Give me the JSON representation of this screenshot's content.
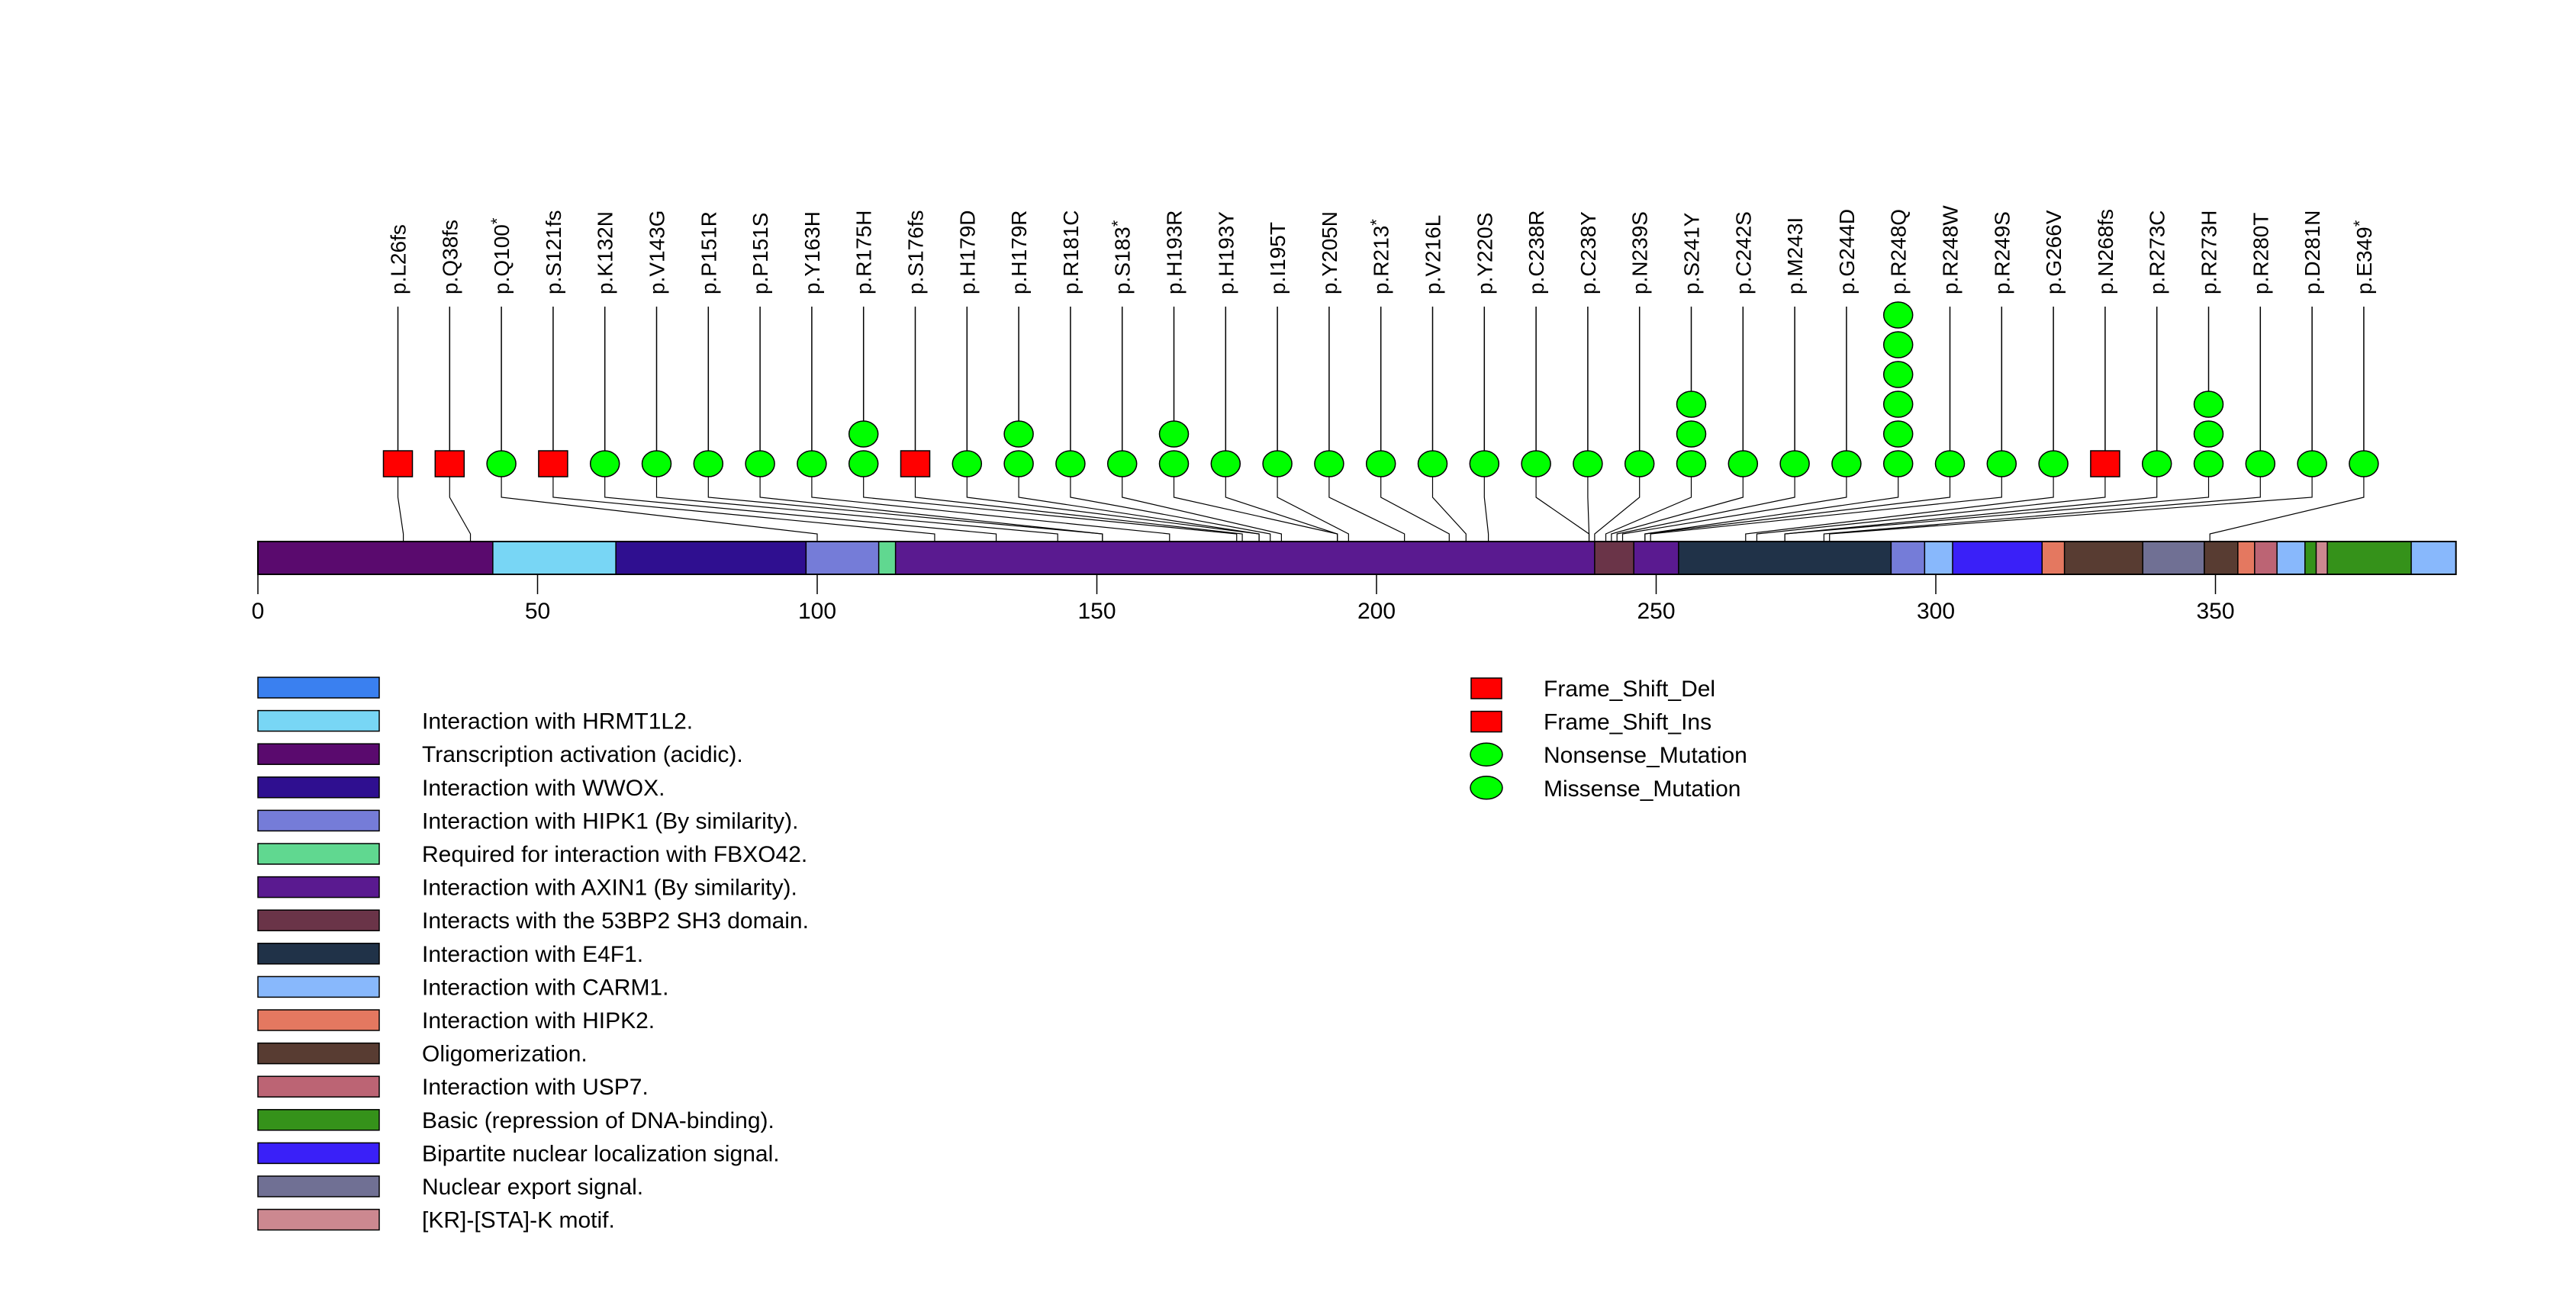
{
  "chart_data": {
    "type": "lollipop",
    "title": "",
    "protein_length": 393,
    "xlim": [
      0,
      393
    ],
    "x_ticks": [
      0,
      50,
      100,
      150,
      200,
      250,
      300,
      350
    ],
    "grid": false,
    "mutations": [
      {
        "label": "p.L26fs",
        "position": 26,
        "count": 1,
        "type": "Frame_Shift_Del"
      },
      {
        "label": "p.Q38fs",
        "position": 38,
        "count": 1,
        "type": "Frame_Shift_Del"
      },
      {
        "label": "p.Q100",
        "label_suffix": "*",
        "position": 100,
        "count": 1,
        "type": "Nonsense_Mutation"
      },
      {
        "label": "p.S121fs",
        "position": 121,
        "count": 1,
        "type": "Frame_Shift_Ins"
      },
      {
        "label": "p.K132N",
        "position": 132,
        "count": 1,
        "type": "Missense_Mutation"
      },
      {
        "label": "p.V143G",
        "position": 143,
        "count": 1,
        "type": "Missense_Mutation"
      },
      {
        "label": "p.P151R",
        "position": 151,
        "count": 1,
        "type": "Missense_Mutation"
      },
      {
        "label": "p.P151S",
        "position": 151,
        "count": 1,
        "type": "Missense_Mutation"
      },
      {
        "label": "p.Y163H",
        "position": 163,
        "count": 1,
        "type": "Missense_Mutation"
      },
      {
        "label": "p.R175H",
        "position": 175,
        "count": 2,
        "type": "Missense_Mutation"
      },
      {
        "label": "p.S176fs",
        "position": 176,
        "count": 1,
        "type": "Frame_Shift_Del"
      },
      {
        "label": "p.H179D",
        "position": 179,
        "count": 1,
        "type": "Missense_Mutation"
      },
      {
        "label": "p.H179R",
        "position": 179,
        "count": 2,
        "type": "Missense_Mutation"
      },
      {
        "label": "p.R181C",
        "position": 181,
        "count": 1,
        "type": "Missense_Mutation"
      },
      {
        "label": "p.S183",
        "label_suffix": "*",
        "position": 183,
        "count": 1,
        "type": "Nonsense_Mutation"
      },
      {
        "label": "p.H193R",
        "position": 193,
        "count": 2,
        "type": "Missense_Mutation"
      },
      {
        "label": "p.H193Y",
        "position": 193,
        "count": 1,
        "type": "Missense_Mutation"
      },
      {
        "label": "p.I195T",
        "position": 195,
        "count": 1,
        "type": "Missense_Mutation"
      },
      {
        "label": "p.Y205N",
        "position": 205,
        "count": 1,
        "type": "Missense_Mutation"
      },
      {
        "label": "p.R213",
        "label_suffix": "*",
        "position": 213,
        "count": 1,
        "type": "Nonsense_Mutation"
      },
      {
        "label": "p.V216L",
        "position": 216,
        "count": 1,
        "type": "Missense_Mutation"
      },
      {
        "label": "p.Y220S",
        "position": 220,
        "count": 1,
        "type": "Missense_Mutation"
      },
      {
        "label": "p.C238R",
        "position": 238,
        "count": 1,
        "type": "Missense_Mutation"
      },
      {
        "label": "p.C238Y",
        "position": 238,
        "count": 1,
        "type": "Missense_Mutation"
      },
      {
        "label": "p.N239S",
        "position": 239,
        "count": 1,
        "type": "Missense_Mutation"
      },
      {
        "label": "p.S241Y",
        "position": 241,
        "count": 3,
        "type": "Missense_Mutation"
      },
      {
        "label": "p.C242S",
        "position": 242,
        "count": 1,
        "type": "Missense_Mutation"
      },
      {
        "label": "p.M243I",
        "position": 243,
        "count": 1,
        "type": "Missense_Mutation"
      },
      {
        "label": "p.G244D",
        "position": 244,
        "count": 1,
        "type": "Missense_Mutation"
      },
      {
        "label": "p.R248Q",
        "position": 248,
        "count": 6,
        "type": "Missense_Mutation"
      },
      {
        "label": "p.R248W",
        "position": 248,
        "count": 1,
        "type": "Missense_Mutation"
      },
      {
        "label": "p.R249S",
        "position": 249,
        "count": 1,
        "type": "Missense_Mutation"
      },
      {
        "label": "p.G266V",
        "position": 266,
        "count": 1,
        "type": "Missense_Mutation"
      },
      {
        "label": "p.N268fs",
        "position": 268,
        "count": 1,
        "type": "Frame_Shift_Del"
      },
      {
        "label": "p.R273C",
        "position": 273,
        "count": 1,
        "type": "Missense_Mutation"
      },
      {
        "label": "p.R273H",
        "position": 273,
        "count": 3,
        "type": "Missense_Mutation"
      },
      {
        "label": "p.R280T",
        "position": 280,
        "count": 1,
        "type": "Missense_Mutation"
      },
      {
        "label": "p.D281N",
        "position": 281,
        "count": 1,
        "type": "Missense_Mutation"
      },
      {
        "label": "p.E349",
        "label_suffix": "*",
        "position": 349,
        "count": 1,
        "type": "Nonsense_Mutation"
      }
    ],
    "domains": [
      {
        "name": "Transcription activation (acidic).",
        "start": 1,
        "end": 43,
        "color": "#5a0a6e"
      },
      {
        "name": "Interaction with HRMT1L2.",
        "start": 43,
        "end": 65,
        "color": "#78d6f5"
      },
      {
        "name": "Interaction with WWOX.",
        "start": 65,
        "end": 99,
        "color": "#2f0f90"
      },
      {
        "name": "Interaction with HIPK1 (By similarity).",
        "start": 99,
        "end": 112,
        "color": "#757cd8"
      },
      {
        "name": "Required for interaction with FBXO42.",
        "start": 112,
        "end": 115,
        "color": "#60d890"
      },
      {
        "name": "Interaction with AXIN1 (By similarity).",
        "start": 115,
        "end": 240,
        "color": "#5a1a90"
      },
      {
        "name": "Interacts with the 53BP2 SH3 domain.",
        "start": 240,
        "end": 247,
        "color": "#6a3448"
      },
      {
        "name": "Interaction with AXIN1 (By similarity).",
        "start": 247,
        "end": 255,
        "color": "#5a1a90"
      },
      {
        "name": "Interaction with E4F1.",
        "start": 255,
        "end": 293,
        "color": "#203248"
      },
      {
        "name": "Interaction with HIPK1 (By similarity).",
        "start": 293,
        "end": 299,
        "color": "#757cd8"
      },
      {
        "name": "Interaction with CARM1.",
        "start": 299,
        "end": 304,
        "color": "#88b8fc"
      },
      {
        "name": "Bipartite nuclear localization signal.",
        "start": 304,
        "end": 320,
        "color": "#3a20f8"
      },
      {
        "name": "Interaction with HIPK2.",
        "start": 320,
        "end": 324,
        "color": "#e47860"
      },
      {
        "name": "Oligomerization.",
        "start": 324,
        "end": 338,
        "color": "#583c32"
      },
      {
        "name": "Nuclear export signal.",
        "start": 338,
        "end": 348,
        "color": "#707094"
      },
      {
        "name": "Oligomerization.",
        "start": 349,
        "end": 355,
        "color": "#583c32"
      },
      {
        "name": "Interaction with HIPK2.",
        "start": 355,
        "end": 358,
        "color": "#e47860"
      },
      {
        "name": "Interaction with USP7.",
        "start": 358,
        "end": 362,
        "color": "#bc6474"
      },
      {
        "name": "Interaction with CARM1.",
        "start": 362,
        "end": 367,
        "color": "#88b8fc"
      },
      {
        "name": "Basic (repression of DNA-binding).",
        "start": 367,
        "end": 369,
        "color": "#35921a"
      },
      {
        "name": "[KR]-[STA]-K motif.",
        "start": 369,
        "end": 371,
        "color": "#cc8890"
      },
      {
        "name": "Basic (repression of DNA-binding).",
        "start": 371,
        "end": 386,
        "color": "#35921a"
      },
      {
        "name": "Interaction with CARM1.",
        "start": 386,
        "end": 393,
        "color": "#88b8fc"
      }
    ],
    "domain_legend": [
      {
        "name": "",
        "color": "#3a80f0"
      },
      {
        "name": "Interaction with HRMT1L2.",
        "color": "#78d6f5"
      },
      {
        "name": "Transcription activation (acidic).",
        "color": "#5a0a6e"
      },
      {
        "name": "Interaction with WWOX.",
        "color": "#2f0f90"
      },
      {
        "name": "Interaction with HIPK1 (By similarity).",
        "color": "#757cd8"
      },
      {
        "name": "Required for interaction with FBXO42.",
        "color": "#60d890"
      },
      {
        "name": "Interaction with AXIN1 (By similarity).",
        "color": "#5a1a90"
      },
      {
        "name": "Interacts with the 53BP2 SH3 domain.",
        "color": "#6a3448"
      },
      {
        "name": "Interaction with E4F1.",
        "color": "#203248"
      },
      {
        "name": "Interaction with CARM1.",
        "color": "#88b8fc"
      },
      {
        "name": "Interaction with HIPK2.",
        "color": "#e47860"
      },
      {
        "name": "Oligomerization.",
        "color": "#583c32"
      },
      {
        "name": "Interaction with USP7.",
        "color": "#bc6474"
      },
      {
        "name": "Basic (repression of DNA-binding).",
        "color": "#35921a"
      },
      {
        "name": "Bipartite nuclear localization signal.",
        "color": "#3a20f8"
      },
      {
        "name": "Nuclear export signal.",
        "color": "#707094"
      },
      {
        "name": "[KR]-[STA]-K motif.",
        "color": "#cc8890"
      }
    ],
    "mutation_legend": [
      {
        "name": "Frame_Shift_Del",
        "shape": "square",
        "color": "#ff0000"
      },
      {
        "name": "Frame_Shift_Ins",
        "shape": "square",
        "color": "#ff0000"
      },
      {
        "name": "Nonsense_Mutation",
        "shape": "circle",
        "color": "#00ff00"
      },
      {
        "name": "Missense_Mutation",
        "shape": "circle",
        "color": "#00ff00"
      }
    ]
  }
}
